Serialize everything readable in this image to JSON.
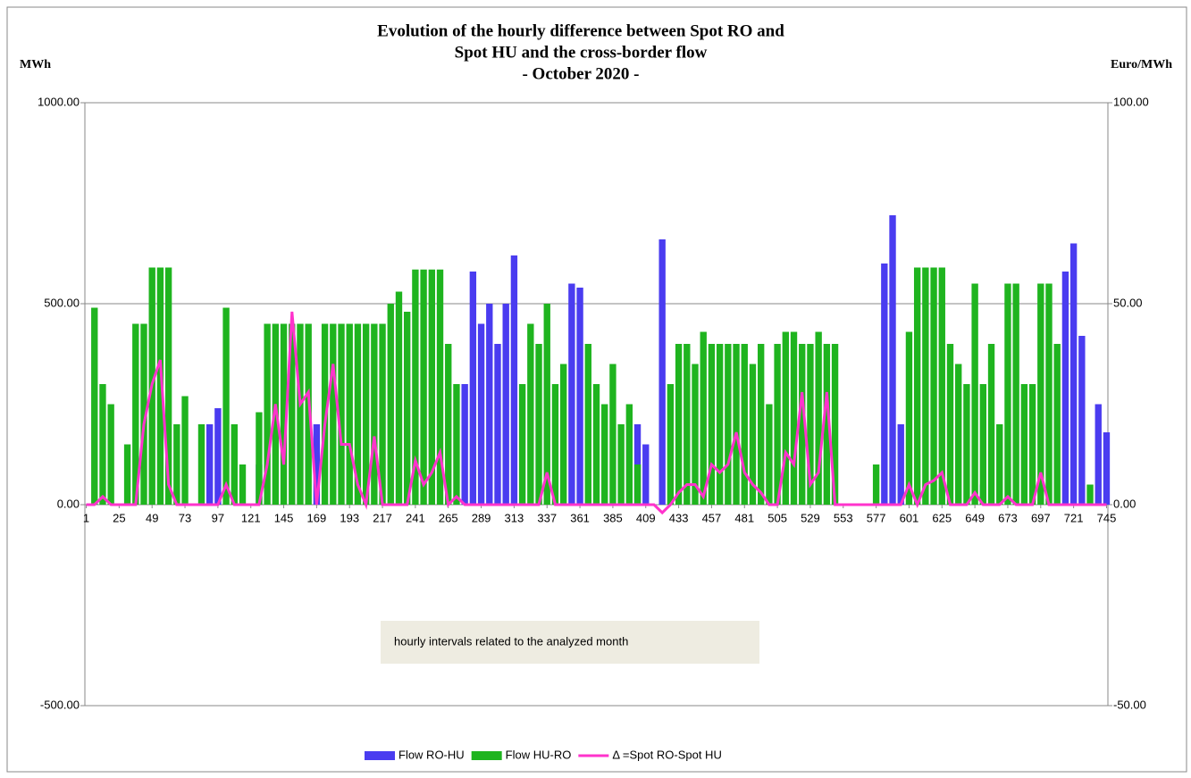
{
  "chart_data": {
    "type": "bar-line",
    "title": [
      "Evolution of the hourly difference between Spot RO and",
      "Spot HU and the cross-border flow",
      "- October 2020 -"
    ],
    "ylabel": "MWh",
    "y2label": "Euro/MWh",
    "annotation": "hourly intervals related to the analyzed month",
    "xlim": [
      0,
      746
    ],
    "xticks": [
      1,
      25,
      49,
      73,
      97,
      121,
      145,
      169,
      193,
      217,
      241,
      265,
      289,
      313,
      337,
      361,
      385,
      409,
      433,
      457,
      481,
      505,
      529,
      553,
      577,
      601,
      625,
      649,
      673,
      697,
      721,
      745
    ],
    "ylim": [
      -500,
      1000
    ],
    "yticks": [
      {
        "value": -500,
        "label": "-500.00"
      },
      {
        "value": 0,
        "label": "0.00"
      },
      {
        "value": 500,
        "label": "500.00"
      },
      {
        "value": 1000,
        "label": "1000.00"
      }
    ],
    "y2lim": [
      -50,
      100
    ],
    "y2ticks": [
      {
        "value": -50,
        "label": "-50.00"
      },
      {
        "value": 0,
        "label": "0.00"
      },
      {
        "value": 50,
        "label": "50.00"
      },
      {
        "value": 100,
        "label": "100.00"
      }
    ],
    "grid": true,
    "x": [
      1,
      7,
      13,
      19,
      25,
      31,
      37,
      43,
      49,
      55,
      61,
      67,
      73,
      79,
      85,
      91,
      97,
      103,
      109,
      115,
      121,
      127,
      133,
      139,
      145,
      151,
      157,
      163,
      169,
      175,
      181,
      187,
      193,
      199,
      205,
      211,
      217,
      223,
      229,
      235,
      241,
      247,
      253,
      259,
      265,
      271,
      277,
      283,
      289,
      295,
      301,
      307,
      313,
      319,
      325,
      331,
      337,
      343,
      349,
      355,
      361,
      367,
      373,
      379,
      385,
      391,
      397,
      403,
      409,
      415,
      421,
      427,
      433,
      439,
      445,
      451,
      457,
      463,
      469,
      475,
      481,
      487,
      493,
      499,
      505,
      511,
      517,
      523,
      529,
      535,
      541,
      547,
      553,
      559,
      565,
      571,
      577,
      583,
      589,
      595,
      601,
      607,
      613,
      619,
      625,
      631,
      637,
      643,
      649,
      655,
      661,
      667,
      673,
      679,
      685,
      691,
      697,
      703,
      709,
      715,
      721,
      727,
      733,
      739,
      745
    ],
    "series": [
      {
        "name": "Flow RO-HU",
        "color": "#4a3cf0",
        "kind": "bar",
        "values": [
          0,
          0,
          0,
          0,
          0,
          0,
          0,
          0,
          0,
          0,
          0,
          0,
          0,
          0,
          0,
          200,
          240,
          0,
          0,
          0,
          0,
          100,
          0,
          0,
          0,
          0,
          0,
          0,
          200,
          0,
          0,
          0,
          0,
          0,
          0,
          0,
          0,
          0,
          0,
          0,
          0,
          0,
          0,
          0,
          0,
          0,
          300,
          580,
          450,
          500,
          400,
          500,
          620,
          0,
          0,
          0,
          0,
          0,
          0,
          550,
          540,
          0,
          0,
          0,
          0,
          0,
          0,
          200,
          150,
          0,
          660,
          0,
          0,
          0,
          0,
          0,
          0,
          0,
          0,
          0,
          0,
          0,
          0,
          0,
          0,
          0,
          0,
          0,
          0,
          0,
          0,
          0,
          0,
          0,
          0,
          0,
          0,
          600,
          720,
          200,
          0,
          0,
          0,
          0,
          0,
          0,
          0,
          0,
          0,
          50,
          0,
          0,
          0,
          0,
          0,
          0,
          0,
          0,
          0,
          580,
          650,
          420,
          0,
          250,
          180
        ]
      },
      {
        "name": "Flow HU-RO",
        "color": "#1fb41f",
        "kind": "bar",
        "values": [
          0,
          490,
          300,
          250,
          0,
          150,
          450,
          450,
          590,
          590,
          590,
          200,
          270,
          0,
          200,
          0,
          0,
          490,
          200,
          100,
          0,
          230,
          450,
          450,
          450,
          450,
          450,
          450,
          0,
          450,
          450,
          450,
          450,
          450,
          450,
          450,
          450,
          500,
          530,
          480,
          585,
          585,
          585,
          585,
          400,
          300,
          0,
          0,
          0,
          0,
          0,
          0,
          0,
          300,
          450,
          400,
          500,
          300,
          350,
          0,
          0,
          400,
          300,
          250,
          350,
          200,
          250,
          100,
          0,
          0,
          0,
          300,
          400,
          400,
          350,
          430,
          400,
          400,
          400,
          400,
          400,
          350,
          400,
          250,
          400,
          430,
          430,
          400,
          400,
          430,
          400,
          400,
          0,
          0,
          0,
          0,
          100,
          0,
          0,
          0,
          430,
          590,
          590,
          590,
          590,
          400,
          350,
          300,
          550,
          300,
          400,
          200,
          550,
          550,
          300,
          300,
          550,
          550,
          400,
          0,
          0,
          0,
          50,
          0,
          0
        ]
      },
      {
        "name": "Δ =Spot RO-Spot HU",
        "color": "#ff33cc",
        "kind": "line",
        "axis": "y2",
        "values": [
          0,
          0,
          2,
          0,
          0,
          0,
          0,
          20,
          30,
          36,
          5,
          0,
          0,
          0,
          0,
          0,
          0,
          5,
          0,
          0,
          0,
          0,
          10,
          25,
          10,
          48,
          25,
          28,
          0,
          20,
          35,
          15,
          15,
          5,
          0,
          17,
          0,
          0,
          0,
          0,
          11,
          5,
          8,
          13,
          0,
          2,
          0,
          0,
          0,
          0,
          0,
          0,
          0,
          0,
          0,
          0,
          8,
          0,
          0,
          0,
          0,
          0,
          0,
          0,
          0,
          0,
          0,
          0,
          0,
          0,
          -2,
          0,
          3,
          5,
          5,
          2,
          10,
          8,
          10,
          18,
          8,
          5,
          3,
          0,
          0,
          13,
          10,
          28,
          5,
          8,
          28,
          0,
          0,
          0,
          0,
          0,
          0,
          0,
          0,
          0,
          5,
          0,
          5,
          6,
          8,
          0,
          0,
          0,
          3,
          0,
          0,
          0,
          2,
          0,
          0,
          0,
          8,
          0,
          0,
          0,
          0,
          0,
          0,
          0,
          0
        ]
      }
    ]
  }
}
